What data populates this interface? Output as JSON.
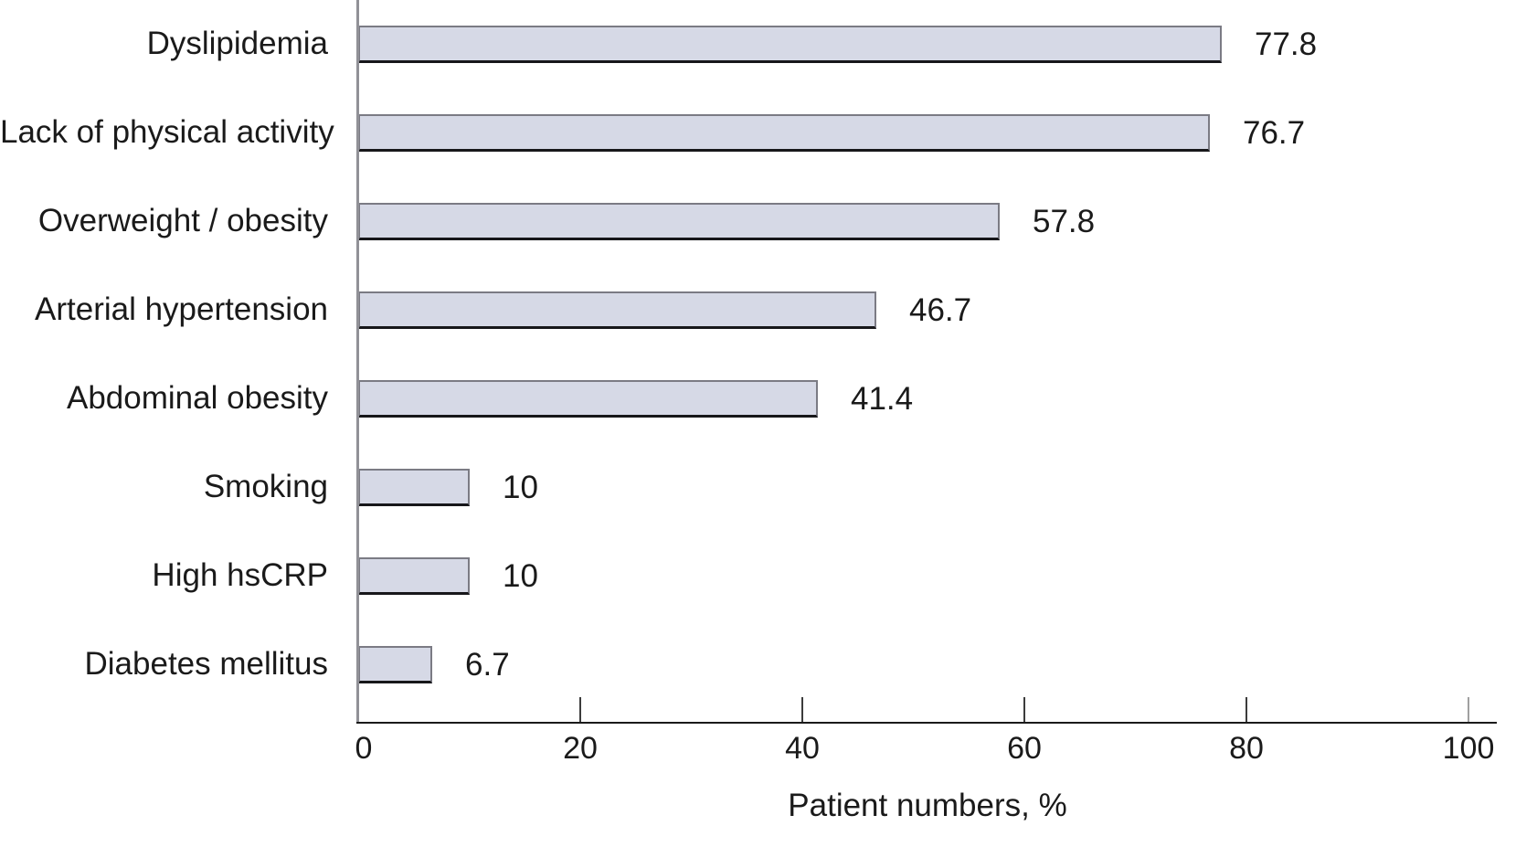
{
  "chart_data": {
    "type": "bar",
    "orientation": "horizontal",
    "categories": [
      "Dyslipidemia",
      "Lack of physical activity",
      "Overweight / obesity",
      "Arterial hypertension",
      "Abdominal obesity",
      "Smoking",
      "High hsCRP",
      "Diabetes mellitus"
    ],
    "values": [
      77.8,
      76.7,
      57.8,
      46.7,
      41.4,
      10,
      10,
      6.7
    ],
    "value_labels": [
      "77.8",
      "76.7",
      "57.8",
      "46.7",
      "41.4",
      "10",
      "10",
      "6.7"
    ],
    "title": "",
    "xlabel": "Patient numbers, %",
    "ylabel": "",
    "xlim": [
      0,
      100
    ],
    "xticks": [
      0,
      20,
      40,
      60,
      80,
      100
    ],
    "grid": "off",
    "legend": "none",
    "bar_fill_color": "#d6d9e6",
    "bar_border_color": "#7b7b84",
    "bar_border_bottom_color": "#17171a",
    "x_axis_color": "#1a1a1a",
    "y_axis_color": "#919197",
    "text_color": "#1a1a1a"
  }
}
